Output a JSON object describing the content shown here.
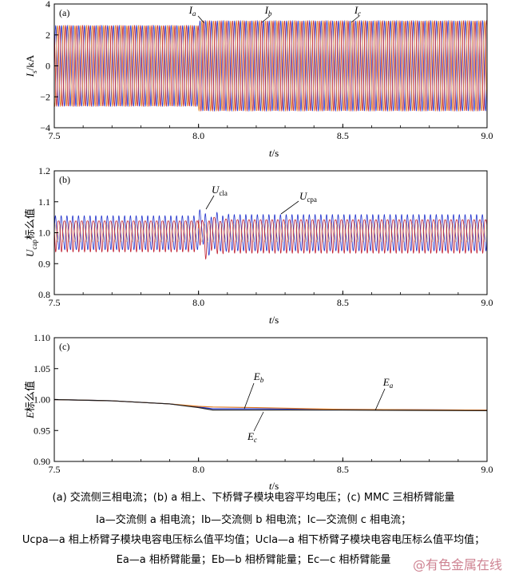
{
  "chart_data": [
    {
      "type": "line",
      "panel_label": "(a)",
      "xlabel": "t/s",
      "ylabel": "Is/kA",
      "xlim": [
        7.5,
        9.0
      ],
      "ylim": [
        -4,
        4
      ],
      "xticks": [
        "7.5",
        "8.0",
        "8.5",
        "9.0"
      ],
      "yticks": [
        "4",
        "2",
        "0",
        "-2",
        "-4"
      ],
      "ytick_values": [
        4,
        2,
        0,
        -2,
        -4
      ],
      "series": [
        {
          "name": "Ia",
          "color": "#2233cc",
          "waveform": "sinusoid",
          "amplitude_before": 2.6,
          "amplitude_after": 2.9,
          "phase_deg": 0
        },
        {
          "name": "Ib",
          "color": "#e07a20",
          "waveform": "sinusoid",
          "amplitude_before": 2.6,
          "amplitude_after": 2.9,
          "phase_deg": -120
        },
        {
          "name": "Ic",
          "color": "#c02030",
          "waveform": "sinusoid",
          "amplitude_before": 2.6,
          "amplitude_after": 2.9,
          "phase_deg": 120
        }
      ],
      "event_t": 8.0,
      "annotations": [
        {
          "label": "I",
          "sub": "a"
        },
        {
          "label": "I",
          "sub": "b"
        },
        {
          "label": "I",
          "sub": "c"
        }
      ]
    },
    {
      "type": "line",
      "panel_label": "(b)",
      "xlabel": "t/s",
      "ylabel": "Ucap标么值",
      "xlim": [
        7.5,
        9.0
      ],
      "ylim": [
        0.8,
        1.2
      ],
      "xticks": [
        "7.5",
        "8.0",
        "8.5",
        "9.0"
      ],
      "yticks": [
        "1.2",
        "1.1",
        "1.0",
        "0.9",
        "0.8"
      ],
      "ytick_values": [
        1.2,
        1.1,
        1.0,
        0.9,
        0.8
      ],
      "series": [
        {
          "name": "Ucla",
          "color": "#2233cc",
          "waveform": "ripple",
          "center": 1.0,
          "ripple": 0.05
        },
        {
          "name": "Ucpa",
          "color": "#c02030",
          "waveform": "ripple",
          "center": 1.0,
          "ripple": 0.05
        }
      ],
      "event_t": 8.0,
      "annotations": [
        {
          "label": "U",
          "sub": "cla"
        },
        {
          "label": "U",
          "sub": "cpa"
        }
      ]
    },
    {
      "type": "line",
      "panel_label": "(c)",
      "xlabel": "t/s",
      "ylabel": "E标么值",
      "xlim": [
        7.5,
        9.0
      ],
      "ylim": [
        0.9,
        1.1
      ],
      "xticks": [
        "7.5",
        "8.0",
        "8.5",
        "9.0"
      ],
      "yticks": [
        "1.10",
        "1.05",
        "1.00",
        "0.95",
        "0.90"
      ],
      "ytick_values": [
        1.1,
        1.05,
        1.0,
        0.95,
        0.9
      ],
      "series": [
        {
          "name": "Ea",
          "color": "#2233cc",
          "points": [
            [
              7.5,
              1.0
            ],
            [
              7.7,
              0.998
            ],
            [
              7.9,
              0.993
            ],
            [
              8.0,
              0.988
            ],
            [
              8.05,
              0.985
            ],
            [
              8.2,
              0.985
            ],
            [
              8.5,
              0.984
            ],
            [
              9.0,
              0.983
            ]
          ]
        },
        {
          "name": "Eb",
          "color": "#e07a20",
          "points": [
            [
              7.5,
              1.0
            ],
            [
              7.7,
              0.998
            ],
            [
              7.9,
              0.993
            ],
            [
              8.0,
              0.989
            ],
            [
              8.05,
              0.988
            ],
            [
              8.2,
              0.987
            ],
            [
              8.5,
              0.984
            ],
            [
              9.0,
              0.983
            ]
          ]
        },
        {
          "name": "Ec",
          "color": "#202020",
          "points": [
            [
              7.5,
              1.0
            ],
            [
              7.7,
              0.998
            ],
            [
              7.9,
              0.993
            ],
            [
              8.0,
              0.987
            ],
            [
              8.05,
              0.983
            ],
            [
              8.2,
              0.983
            ],
            [
              8.5,
              0.983
            ],
            [
              9.0,
              0.982
            ]
          ]
        }
      ],
      "annotations": [
        {
          "label": "E",
          "sub": "b"
        },
        {
          "label": "E",
          "sub": "a"
        },
        {
          "label": "E",
          "sub": "c"
        }
      ]
    }
  ],
  "captions": {
    "line1": "(a) 交流侧三相电流；(b) a 相上、下桥臂子模块电容平均电压；(c) MMC 三相桥臂能量",
    "line2": "Ia—交流侧 a 相电流；Ib—交流侧 b 相电流；Ic—交流侧 c 相电流；",
    "line3": "Ucpa—a 相上桥臂子模块电容电压标么值平均值；Ucla—a 相下桥臂子模块电容电压标么值平均值；",
    "line4": "Ea—a 相桥臂能量；Eb—b 相桥臂能量；Ec—c 相桥臂能量"
  },
  "watermark": "@有色金属在线"
}
